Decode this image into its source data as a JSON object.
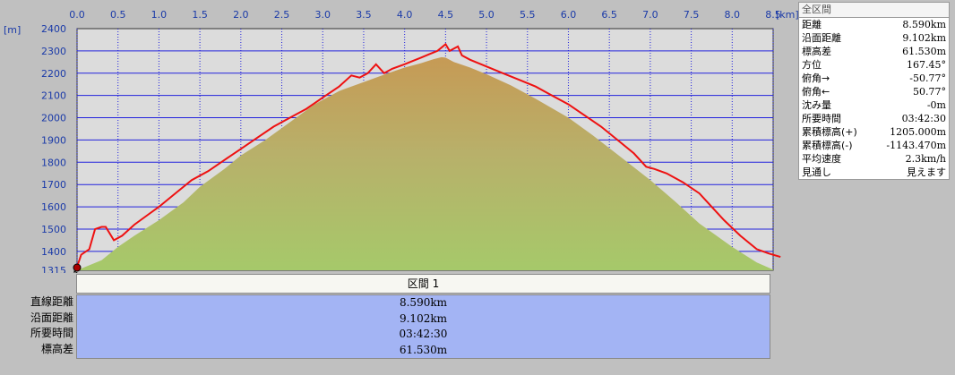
{
  "units": {
    "x": "[km]",
    "y": "[m]"
  },
  "chart_data": {
    "type": "area",
    "x_ticks": [
      "0.0",
      "0.5",
      "1.0",
      "1.5",
      "2.0",
      "2.5",
      "3.0",
      "3.5",
      "4.0",
      "4.5",
      "5.0",
      "5.5",
      "6.0",
      "6.5",
      "7.0",
      "7.5",
      "8.0",
      "8.5"
    ],
    "y_ticks": [
      "1315",
      "1400",
      "1500",
      "1600",
      "1700",
      "1800",
      "1900",
      "2000",
      "2100",
      "2200",
      "2300",
      "2400"
    ],
    "xlim": [
      0,
      8.5
    ],
    "ylim": [
      1315,
      2400
    ],
    "series": [
      {
        "kind": "terrain-profile",
        "x": [
          0.0,
          0.1,
          0.3,
          0.5,
          0.7,
          1.0,
          1.3,
          1.5,
          1.8,
          2.0,
          2.3,
          2.6,
          2.9,
          3.2,
          3.5,
          3.8,
          4.0,
          4.2,
          4.35,
          4.45,
          4.5,
          4.6,
          4.8,
          5.0,
          5.3,
          5.6,
          6.0,
          6.3,
          6.6,
          7.0,
          7.3,
          7.6,
          8.0,
          8.3,
          8.5
        ],
        "y": [
          1315,
          1330,
          1360,
          1420,
          1470,
          1540,
          1620,
          1690,
          1770,
          1830,
          1900,
          1980,
          2060,
          2120,
          2160,
          2200,
          2225,
          2245,
          2262,
          2272,
          2270,
          2250,
          2225,
          2195,
          2145,
          2085,
          2000,
          1920,
          1835,
          1720,
          1625,
          1525,
          1420,
          1350,
          1318
        ]
      },
      {
        "kind": "route",
        "x": [
          0.0,
          0.05,
          0.15,
          0.22,
          0.3,
          0.35,
          0.45,
          0.55,
          0.7,
          0.85,
          1.0,
          1.2,
          1.4,
          1.6,
          1.8,
          2.0,
          2.2,
          2.4,
          2.6,
          2.8,
          3.0,
          3.2,
          3.35,
          3.45,
          3.55,
          3.65,
          3.75,
          3.85,
          4.0,
          4.1,
          4.2,
          4.3,
          4.4,
          4.45,
          4.5,
          4.55,
          4.6,
          4.65,
          4.7,
          4.8,
          5.0,
          5.2,
          5.4,
          5.6,
          5.8,
          6.0,
          6.2,
          6.4,
          6.6,
          6.8,
          6.95,
          7.05,
          7.2,
          7.4,
          7.6,
          7.75,
          7.9,
          8.1,
          8.3,
          8.45,
          8.59
        ],
        "y": [
          1330,
          1385,
          1410,
          1500,
          1510,
          1510,
          1450,
          1470,
          1520,
          1560,
          1600,
          1660,
          1720,
          1760,
          1810,
          1860,
          1910,
          1960,
          2000,
          2040,
          2090,
          2140,
          2190,
          2180,
          2200,
          2240,
          2200,
          2220,
          2240,
          2255,
          2270,
          2285,
          2300,
          2315,
          2330,
          2300,
          2310,
          2320,
          2280,
          2260,
          2230,
          2200,
          2170,
          2140,
          2100,
          2060,
          2010,
          1960,
          1900,
          1840,
          1780,
          1770,
          1750,
          1710,
          1660,
          1600,
          1540,
          1470,
          1410,
          1390,
          1375
        ]
      }
    ],
    "colors": {
      "route": "#ee1111",
      "fill_top": "#c69a55",
      "fill_bottom": "#a6c96a",
      "grid": "#2222dd",
      "plot_bg": "#dcdcdc"
    },
    "grid": true
  },
  "stats": {
    "title": "全区間",
    "rows": [
      {
        "label": "距離",
        "value": "8.590km"
      },
      {
        "label": "沿面距離",
        "value": "9.102km"
      },
      {
        "label": "標高差",
        "value": "61.530m"
      },
      {
        "label": "方位",
        "value": "167.45°"
      },
      {
        "label": "俯角→",
        "value": "-50.77°"
      },
      {
        "label": "俯角←",
        "value": "50.77°"
      },
      {
        "label": "沈み量",
        "value": "-0m"
      },
      {
        "label": "所要時間",
        "value": "03:42:30"
      },
      {
        "label": "累積標高(+)",
        "value": "1205.000m"
      },
      {
        "label": "累積標高(-)",
        "value": "-1143.470m"
      },
      {
        "label": "平均速度",
        "value": "2.3km/h"
      },
      {
        "label": "見通し",
        "value": "見えます"
      }
    ]
  },
  "segment": {
    "header": "区間 1",
    "labels": [
      "直線距離",
      "沿面距離",
      "所要時間",
      "標高差"
    ],
    "values": [
      "8.590km",
      "9.102km",
      "03:42:30",
      "61.530m"
    ]
  }
}
